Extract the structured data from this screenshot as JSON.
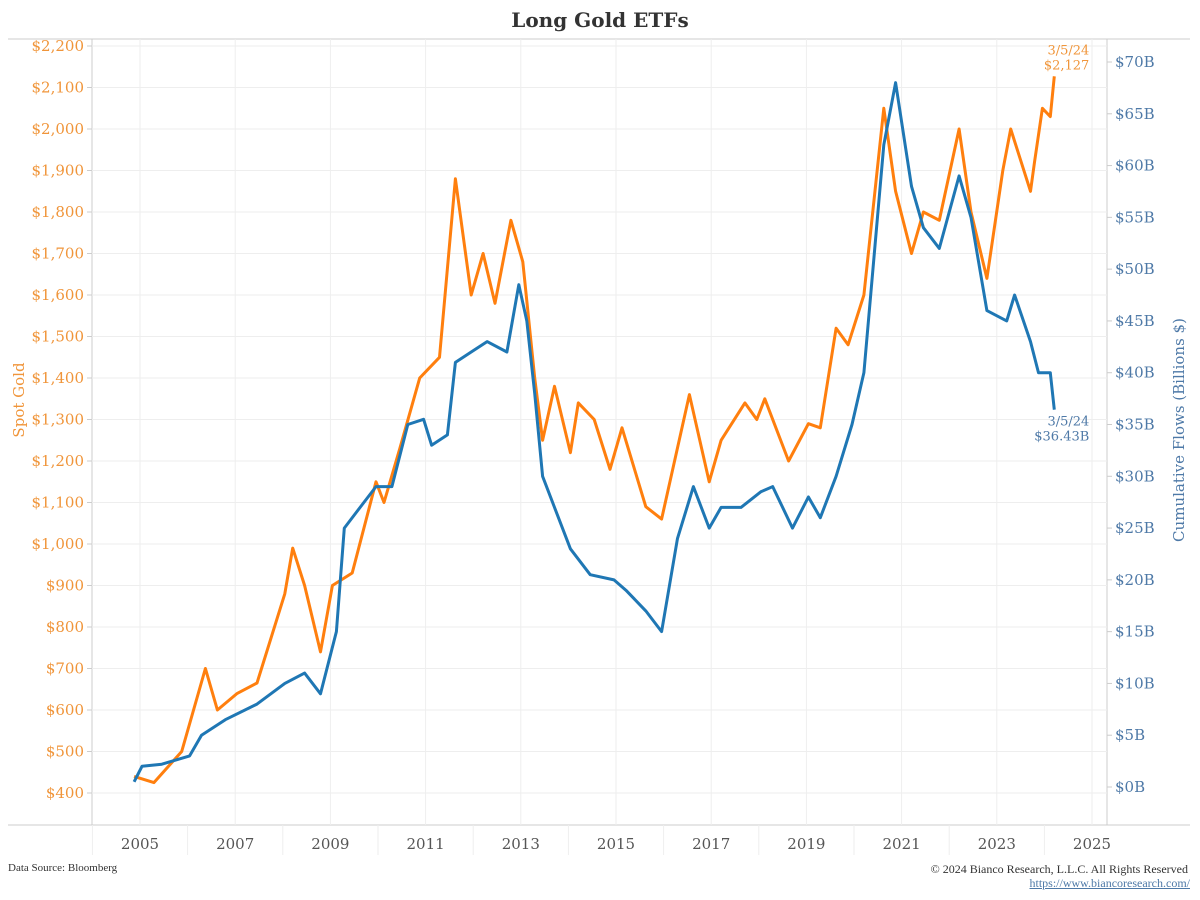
{
  "chart_data": {
    "type": "line",
    "title": "Long Gold ETFs",
    "x_ticks": [
      "2005",
      "2007",
      "2009",
      "2011",
      "2013",
      "2015",
      "2017",
      "2019",
      "2021",
      "2023",
      "2025"
    ],
    "grid": true,
    "left_axis": {
      "label": "Spot Gold",
      "range": [
        400,
        2200
      ],
      "ticks": [
        "$400",
        "$500",
        "$600",
        "$700",
        "$800",
        "$900",
        "$1,000",
        "$1,100",
        "$1,200",
        "$1,300",
        "$1,400",
        "$1,500",
        "$1,600",
        "$1,700",
        "$1,800",
        "$1,900",
        "$2,000",
        "$2,100",
        "$2,200"
      ],
      "color": "#f0953a"
    },
    "right_axis": {
      "label": "Cumulative Flows (Billions $)",
      "range": [
        0,
        70
      ],
      "ticks": [
        "$0B",
        "$5B",
        "$10B",
        "$15B",
        "$20B",
        "$25B",
        "$30B",
        "$35B",
        "$40B",
        "$45B",
        "$50B",
        "$55B",
        "$60B",
        "$65B",
        "$70B"
      ],
      "color": "#4e79a7"
    },
    "series": [
      {
        "axis": "left",
        "color": "#ff7f0e",
        "end_label_date": "3/5/24",
        "end_label_value": "$2,127",
        "points": [
          [
            "2004-11",
            440
          ],
          [
            "2005-04",
            425
          ],
          [
            "2005-11",
            500
          ],
          [
            "2006-05",
            700
          ],
          [
            "2006-08",
            600
          ],
          [
            "2007-01",
            640
          ],
          [
            "2007-06",
            665
          ],
          [
            "2008-01",
            880
          ],
          [
            "2008-03",
            990
          ],
          [
            "2008-06",
            900
          ],
          [
            "2008-10",
            740
          ],
          [
            "2009-01",
            900
          ],
          [
            "2009-06",
            930
          ],
          [
            "2009-12",
            1150
          ],
          [
            "2010-02",
            1100
          ],
          [
            "2010-06",
            1230
          ],
          [
            "2010-11",
            1400
          ],
          [
            "2011-04",
            1450
          ],
          [
            "2011-08",
            1880
          ],
          [
            "2011-12",
            1600
          ],
          [
            "2012-03",
            1700
          ],
          [
            "2012-06",
            1580
          ],
          [
            "2012-10",
            1780
          ],
          [
            "2013-01",
            1680
          ],
          [
            "2013-04",
            1400
          ],
          [
            "2013-06",
            1250
          ],
          [
            "2013-09",
            1380
          ],
          [
            "2014-01",
            1220
          ],
          [
            "2014-03",
            1340
          ],
          [
            "2014-07",
            1300
          ],
          [
            "2014-11",
            1180
          ],
          [
            "2015-02",
            1280
          ],
          [
            "2015-08",
            1090
          ],
          [
            "2015-12",
            1060
          ],
          [
            "2016-07",
            1360
          ],
          [
            "2016-12",
            1150
          ],
          [
            "2017-03",
            1250
          ],
          [
            "2017-09",
            1340
          ],
          [
            "2017-12",
            1300
          ],
          [
            "2018-02",
            1350
          ],
          [
            "2018-08",
            1200
          ],
          [
            "2019-01",
            1290
          ],
          [
            "2019-04",
            1280
          ],
          [
            "2019-08",
            1520
          ],
          [
            "2019-11",
            1480
          ],
          [
            "2020-03",
            1600
          ],
          [
            "2020-08",
            2050
          ],
          [
            "2020-11",
            1850
          ],
          [
            "2021-03",
            1700
          ],
          [
            "2021-06",
            1800
          ],
          [
            "2021-10",
            1780
          ],
          [
            "2022-03",
            2000
          ],
          [
            "2022-06",
            1800
          ],
          [
            "2022-10",
            1640
          ],
          [
            "2023-02",
            1900
          ],
          [
            "2023-04",
            2000
          ],
          [
            "2023-09",
            1850
          ],
          [
            "2023-10",
            1920
          ],
          [
            "2023-12",
            2050
          ],
          [
            "2024-02",
            2030
          ],
          [
            "2024-03",
            2127
          ]
        ]
      },
      {
        "axis": "right",
        "color": "#1f77b4",
        "end_label_date": "3/5/24",
        "end_label_value": "$36.43B",
        "points": [
          [
            "2004-11",
            0.5
          ],
          [
            "2005-01",
            2
          ],
          [
            "2005-06",
            2.2
          ],
          [
            "2006-01",
            3
          ],
          [
            "2006-04",
            5
          ],
          [
            "2006-10",
            6.5
          ],
          [
            "2007-06",
            8
          ],
          [
            "2008-01",
            10
          ],
          [
            "2008-06",
            11
          ],
          [
            "2008-10",
            9
          ],
          [
            "2009-02",
            15
          ],
          [
            "2009-04",
            25
          ],
          [
            "2009-08",
            27
          ],
          [
            "2009-12",
            29
          ],
          [
            "2010-04",
            29
          ],
          [
            "2010-08",
            35
          ],
          [
            "2010-12",
            35.5
          ],
          [
            "2011-02",
            33
          ],
          [
            "2011-06",
            34
          ],
          [
            "2011-08",
            41
          ],
          [
            "2011-12",
            42
          ],
          [
            "2012-04",
            43
          ],
          [
            "2012-09",
            42
          ],
          [
            "2012-12",
            48.5
          ],
          [
            "2013-02",
            45
          ],
          [
            "2013-04",
            38
          ],
          [
            "2013-06",
            30
          ],
          [
            "2013-09",
            27
          ],
          [
            "2014-01",
            23
          ],
          [
            "2014-06",
            20.5
          ],
          [
            "2014-12",
            20
          ],
          [
            "2015-03",
            19
          ],
          [
            "2015-08",
            17
          ],
          [
            "2015-12",
            15
          ],
          [
            "2016-04",
            24
          ],
          [
            "2016-08",
            29
          ],
          [
            "2016-12",
            25
          ],
          [
            "2017-03",
            27
          ],
          [
            "2017-08",
            27
          ],
          [
            "2018-01",
            28.5
          ],
          [
            "2018-04",
            29
          ],
          [
            "2018-09",
            25
          ],
          [
            "2019-01",
            28
          ],
          [
            "2019-04",
            26
          ],
          [
            "2019-08",
            30
          ],
          [
            "2019-12",
            35
          ],
          [
            "2020-03",
            40
          ],
          [
            "2020-08",
            62
          ],
          [
            "2020-11",
            68
          ],
          [
            "2021-03",
            58
          ],
          [
            "2021-06",
            54
          ],
          [
            "2021-10",
            52
          ],
          [
            "2022-03",
            59
          ],
          [
            "2022-06",
            55
          ],
          [
            "2022-10",
            46
          ],
          [
            "2023-03",
            45
          ],
          [
            "2023-05",
            47.5
          ],
          [
            "2023-09",
            43
          ],
          [
            "2023-11",
            40
          ],
          [
            "2024-02",
            40
          ],
          [
            "2024-03",
            36.43
          ]
        ]
      }
    ]
  },
  "footer": {
    "source": "Data Source: Bloomberg",
    "copyright": "© 2024  Bianco Research, L.L.C. All Rights Reserved",
    "url": "https://www.biancoresearch.com/"
  }
}
